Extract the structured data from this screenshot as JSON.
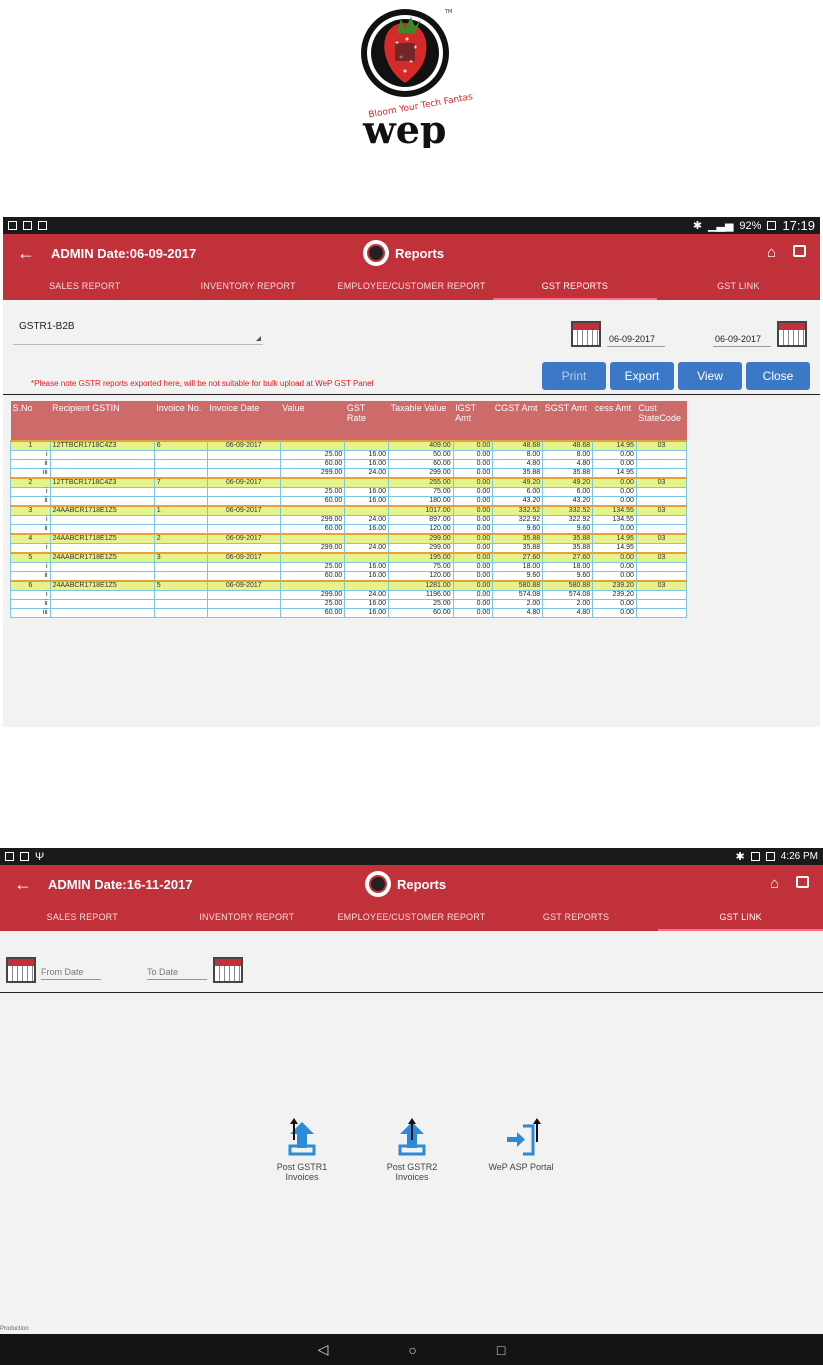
{
  "logo": {
    "brand": "wep",
    "tagline": "Bloom Your Tech Fantasy",
    "mark": "TM"
  },
  "screen1": {
    "status": {
      "battery": "92%",
      "time": "17:19"
    },
    "title": "ADMIN  Date:06-09-2017",
    "center_label": "Reports",
    "mini_logo_text": "wep",
    "tabs": [
      "SALES REPORT",
      "INVENTORY REPORT",
      "EMPLOYEE/CUSTOMER REPORT",
      "GST REPORTS",
      "GST LINK"
    ],
    "active_tab": 3,
    "report_type": "GSTR1-B2B",
    "from_date": "06-09-2017",
    "to_date": "06-09-2017",
    "notice": "*Please note GSTR reports exported here, will be not suitable for bulk upload at WeP GST Panel",
    "buttons": {
      "print": "Print",
      "export": "Export",
      "view": "View",
      "close": "Close"
    },
    "table": {
      "headers": [
        "S.No",
        "Recipient GSTIN",
        "Invoice No.",
        "Invoice Date",
        "Value",
        "GST Rate",
        "Taxable Value",
        "IGST Amt",
        "CGST Amt",
        "SGST Amt",
        "cess Amt",
        "Cust StateCode"
      ],
      "rows": [
        {
          "type": "main",
          "cells": [
            "1",
            "12TTBCR1718C4Z3",
            "6",
            "06-09-2017",
            "",
            "",
            "409.00",
            "0.00",
            "48.68",
            "48.68",
            "14.95",
            "03"
          ]
        },
        {
          "type": "sub",
          "cells": [
            "i",
            "",
            "",
            "",
            "25.00",
            "16.00",
            "50.00",
            "0.00",
            "8.00",
            "8.00",
            "0.00",
            ""
          ]
        },
        {
          "type": "sub",
          "cells": [
            "ii",
            "",
            "",
            "",
            "60.00",
            "16.00",
            "60.00",
            "0.00",
            "4.80",
            "4.80",
            "0.00",
            ""
          ]
        },
        {
          "type": "sub",
          "cells": [
            "iii",
            "",
            "",
            "",
            "299.00",
            "24.00",
            "299.00",
            "0.00",
            "35.88",
            "35.88",
            "14.95",
            ""
          ]
        },
        {
          "type": "main",
          "cells": [
            "2",
            "12TTBCR1718C4Z3",
            "7",
            "06-09-2017",
            "",
            "",
            "255.00",
            "0.00",
            "49.20",
            "49.20",
            "0.00",
            "03"
          ]
        },
        {
          "type": "sub",
          "cells": [
            "i",
            "",
            "",
            "",
            "25.00",
            "16.00",
            "75.00",
            "0.00",
            "6.00",
            "6.00",
            "0.00",
            ""
          ]
        },
        {
          "type": "sub",
          "cells": [
            "ii",
            "",
            "",
            "",
            "60.00",
            "16.00",
            "180.00",
            "0.00",
            "43.20",
            "43.20",
            "0.00",
            ""
          ]
        },
        {
          "type": "main",
          "cells": [
            "3",
            "24AABCR1718E1Z5",
            "1",
            "06-09-2017",
            "",
            "",
            "1017.00",
            "0.00",
            "332.52",
            "332.52",
            "134.55",
            "03"
          ]
        },
        {
          "type": "sub",
          "cells": [
            "i",
            "",
            "",
            "",
            "299.00",
            "24.00",
            "897.00",
            "0.00",
            "322.92",
            "322.92",
            "134.55",
            ""
          ]
        },
        {
          "type": "sub",
          "cells": [
            "ii",
            "",
            "",
            "",
            "60.00",
            "16.00",
            "120.00",
            "0.00",
            "9.60",
            "9.60",
            "0.00",
            ""
          ]
        },
        {
          "type": "main",
          "cells": [
            "4",
            "24AABCR1718E1Z5",
            "2",
            "06-09-2017",
            "",
            "",
            "299.00",
            "0.00",
            "35.88",
            "35.88",
            "14.95",
            "03"
          ]
        },
        {
          "type": "sub",
          "cells": [
            "i",
            "",
            "",
            "",
            "299.00",
            "24.00",
            "299.00",
            "0.00",
            "35.88",
            "35.88",
            "14.95",
            ""
          ]
        },
        {
          "type": "main",
          "cells": [
            "5",
            "24AABCR1718E1Z5",
            "3",
            "06-09-2017",
            "",
            "",
            "195.00",
            "0.00",
            "27.60",
            "27.60",
            "0.00",
            "03"
          ]
        },
        {
          "type": "sub",
          "cells": [
            "i",
            "",
            "",
            "",
            "25.00",
            "16.00",
            "75.00",
            "0.00",
            "18.00",
            "18.00",
            "0.00",
            ""
          ]
        },
        {
          "type": "sub",
          "cells": [
            "ii",
            "",
            "",
            "",
            "60.00",
            "16.00",
            "120.00",
            "0.00",
            "9.60",
            "9.60",
            "0.00",
            ""
          ]
        },
        {
          "type": "main",
          "cells": [
            "6",
            "24AABCR1718E1Z5",
            "5",
            "06-09-2017",
            "",
            "",
            "1281.00",
            "0.00",
            "580.88",
            "580.88",
            "239.20",
            "03"
          ]
        },
        {
          "type": "sub",
          "cells": [
            "i",
            "",
            "",
            "",
            "299.00",
            "24.00",
            "1196.00",
            "0.00",
            "574.08",
            "574.08",
            "239.20",
            ""
          ]
        },
        {
          "type": "sub",
          "cells": [
            "ii",
            "",
            "",
            "",
            "25.00",
            "16.00",
            "25.00",
            "0.00",
            "2.00",
            "2.00",
            "0.00",
            ""
          ]
        },
        {
          "type": "sub",
          "cells": [
            "iii",
            "",
            "",
            "",
            "60.00",
            "16.00",
            "60.00",
            "0.00",
            "4.80",
            "4.80",
            "0.00",
            ""
          ]
        }
      ]
    }
  },
  "screen2": {
    "status": {
      "time": "4:26 PM"
    },
    "title": "ADMIN  Date:16-11-2017",
    "center_label": "Reports",
    "mini_logo_text": "wep",
    "tabs": [
      "SALES REPORT",
      "INVENTORY REPORT",
      "EMPLOYEE/CUSTOMER REPORT",
      "GST REPORTS",
      "GST LINK"
    ],
    "active_tab": 4,
    "from_placeholder": "From Date",
    "to_placeholder": "To Date",
    "tiles": [
      {
        "label": "Post GSTR1 Invoices",
        "icon": "upload-icon"
      },
      {
        "label": "Post GSTR2 Invoices",
        "icon": "upload-icon"
      },
      {
        "label": "WeP ASP Portal",
        "icon": "portal-login-icon"
      }
    ],
    "footer": "Production"
  },
  "colors": {
    "appbar": "#c1313a",
    "header_row": "#cd6a6a",
    "main_row": "#e6f28a",
    "button": "#3b79c7",
    "notice": "#e02020"
  }
}
